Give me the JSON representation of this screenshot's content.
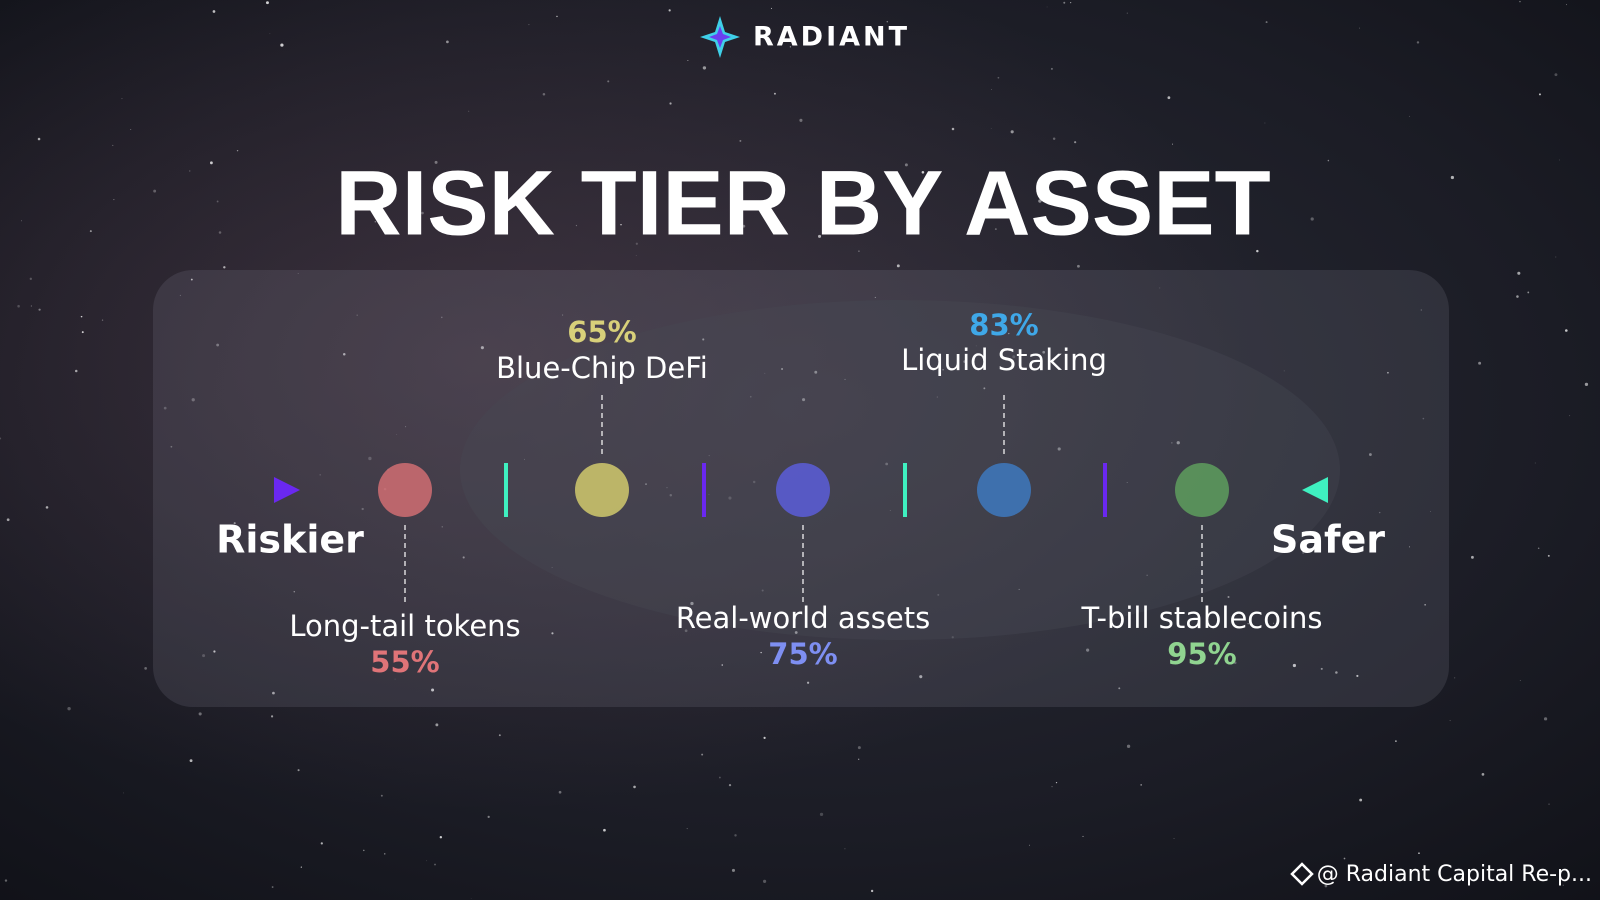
{
  "brand": "RADIANT",
  "title": "RISK TIER BY ASSET",
  "axis": {
    "start": "Riskier",
    "end": "Safer"
  },
  "tiers": [
    {
      "label": "Long-tail tokens",
      "value": "55%"
    },
    {
      "label": "Blue-Chip DeFi",
      "value": "65%"
    },
    {
      "label": "Real-world assets",
      "value": "75%"
    },
    {
      "label": "Liquid Staking",
      "value": "83%"
    },
    {
      "label": "T-bill stablecoins",
      "value": "95%"
    }
  ],
  "watermark": "@ Radiant Capital Re-p..."
}
